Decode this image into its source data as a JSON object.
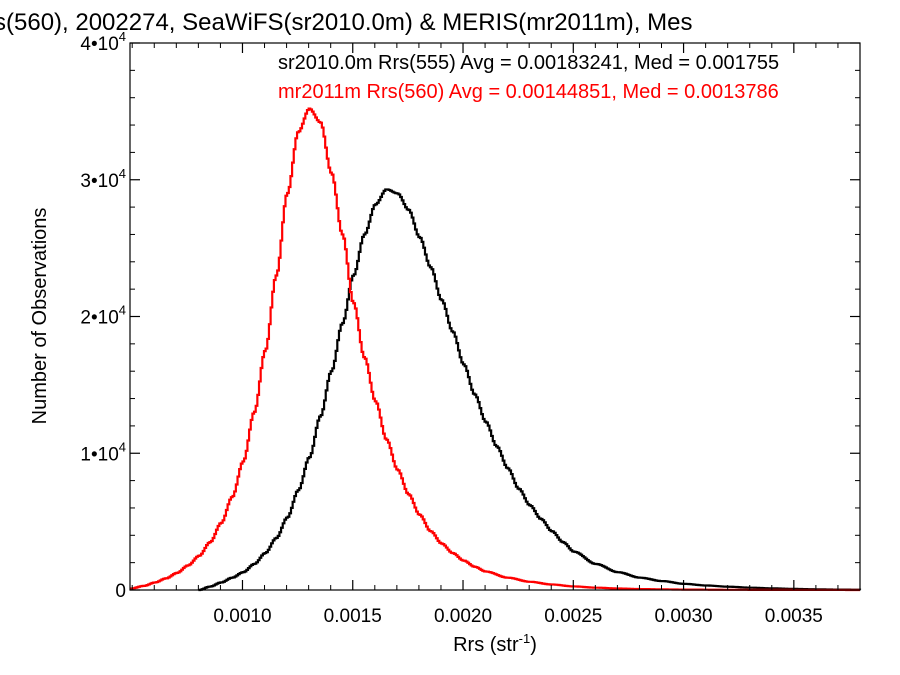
{
  "chart_data": {
    "type": "line",
    "title": "s(560), 2002274, SeaWiFS(sr2010.0m) & MERIS(mr2011m), Mes",
    "xlabel": "Rrs (str",
    "xlabel_sup": "-1",
    "xlabel_close": ")",
    "ylabel": "Number of Observations",
    "xlim": [
      0.00049,
      0.0038
    ],
    "ylim": [
      0,
      40000
    ],
    "x_ticks": [
      {
        "value": 0.001,
        "label": "0.0010"
      },
      {
        "value": 0.0015,
        "label": "0.0015"
      },
      {
        "value": 0.002,
        "label": "0.0020"
      },
      {
        "value": 0.0025,
        "label": "0.0025"
      },
      {
        "value": 0.003,
        "label": "0.0030"
      },
      {
        "value": 0.0035,
        "label": "0.0035"
      }
    ],
    "y_ticks": [
      {
        "value": 0,
        "base": "0",
        "exp": ""
      },
      {
        "value": 10000,
        "base": "1•10",
        "exp": "4"
      },
      {
        "value": 20000,
        "base": "2•10",
        "exp": "4"
      },
      {
        "value": 30000,
        "base": "3•10",
        "exp": "4"
      },
      {
        "value": 40000,
        "base": "4•10",
        "exp": "4"
      }
    ],
    "grid": false,
    "legend": "top-right",
    "series": [
      {
        "name": "sr2010.0m Rrs(555) Avg = 0.00183241, Med = 0.001755",
        "color": "#000000",
        "style": "step",
        "points": [
          [
            0.0008,
            0
          ],
          [
            0.00085,
            250
          ],
          [
            0.0009,
            550
          ],
          [
            0.00095,
            900
          ],
          [
            0.001,
            1300
          ],
          [
            0.00105,
            1900
          ],
          [
            0.0011,
            2700
          ],
          [
            0.00115,
            3800
          ],
          [
            0.0012,
            5300
          ],
          [
            0.00125,
            7300
          ],
          [
            0.0013,
            9700
          ],
          [
            0.00135,
            12700
          ],
          [
            0.0014,
            16000
          ],
          [
            0.00145,
            19500
          ],
          [
            0.0015,
            23000
          ],
          [
            0.00155,
            26000
          ],
          [
            0.0016,
            28200
          ],
          [
            0.00165,
            29300
          ],
          [
            0.0017,
            29000
          ],
          [
            0.00175,
            27800
          ],
          [
            0.0018,
            25800
          ],
          [
            0.00185,
            23600
          ],
          [
            0.0019,
            21200
          ],
          [
            0.00195,
            18900
          ],
          [
            0.002,
            16500
          ],
          [
            0.00205,
            14300
          ],
          [
            0.0021,
            12300
          ],
          [
            0.00215,
            10500
          ],
          [
            0.0022,
            8900
          ],
          [
            0.00225,
            7400
          ],
          [
            0.0023,
            6200
          ],
          [
            0.00235,
            5200
          ],
          [
            0.0024,
            4300
          ],
          [
            0.00245,
            3500
          ],
          [
            0.0025,
            2800
          ],
          [
            0.0026,
            1900
          ],
          [
            0.0027,
            1300
          ],
          [
            0.0028,
            900
          ],
          [
            0.0029,
            650
          ],
          [
            0.003,
            450
          ],
          [
            0.0031,
            330
          ],
          [
            0.0032,
            240
          ],
          [
            0.0033,
            170
          ],
          [
            0.0034,
            120
          ],
          [
            0.0035,
            80
          ],
          [
            0.0036,
            50
          ],
          [
            0.0037,
            30
          ],
          [
            0.0038,
            20
          ]
        ]
      },
      {
        "name": "mr2011m Rrs(560) Avg = 0.00144851, Med = 0.0013786",
        "color": "#ff0000",
        "style": "step",
        "points": [
          [
            0.00049,
            100
          ],
          [
            0.00055,
            300
          ],
          [
            0.0006,
            550
          ],
          [
            0.00065,
            850
          ],
          [
            0.0007,
            1250
          ],
          [
            0.00075,
            1800
          ],
          [
            0.0008,
            2500
          ],
          [
            0.00085,
            3500
          ],
          [
            0.0009,
            4900
          ],
          [
            0.00095,
            6800
          ],
          [
            0.001,
            9400
          ],
          [
            0.00105,
            13000
          ],
          [
            0.0011,
            17500
          ],
          [
            0.00115,
            23000
          ],
          [
            0.0012,
            29000
          ],
          [
            0.00125,
            33500
          ],
          [
            0.0013,
            35200
          ],
          [
            0.00135,
            34200
          ],
          [
            0.0014,
            30500
          ],
          [
            0.00145,
            26000
          ],
          [
            0.0015,
            21000
          ],
          [
            0.00155,
            17000
          ],
          [
            0.0016,
            13800
          ],
          [
            0.00165,
            11000
          ],
          [
            0.0017,
            8800
          ],
          [
            0.00175,
            7000
          ],
          [
            0.0018,
            5500
          ],
          [
            0.00185,
            4300
          ],
          [
            0.0019,
            3400
          ],
          [
            0.00195,
            2700
          ],
          [
            0.002,
            2150
          ],
          [
            0.00205,
            1700
          ],
          [
            0.0021,
            1350
          ],
          [
            0.0022,
            900
          ],
          [
            0.0023,
            600
          ],
          [
            0.0024,
            400
          ],
          [
            0.0025,
            260
          ],
          [
            0.0026,
            170
          ],
          [
            0.0027,
            110
          ],
          [
            0.0028,
            70
          ],
          [
            0.0029,
            45
          ],
          [
            0.003,
            30
          ],
          [
            0.0032,
            15
          ],
          [
            0.0034,
            8
          ],
          [
            0.0036,
            4
          ],
          [
            0.0038,
            2
          ]
        ]
      }
    ]
  }
}
